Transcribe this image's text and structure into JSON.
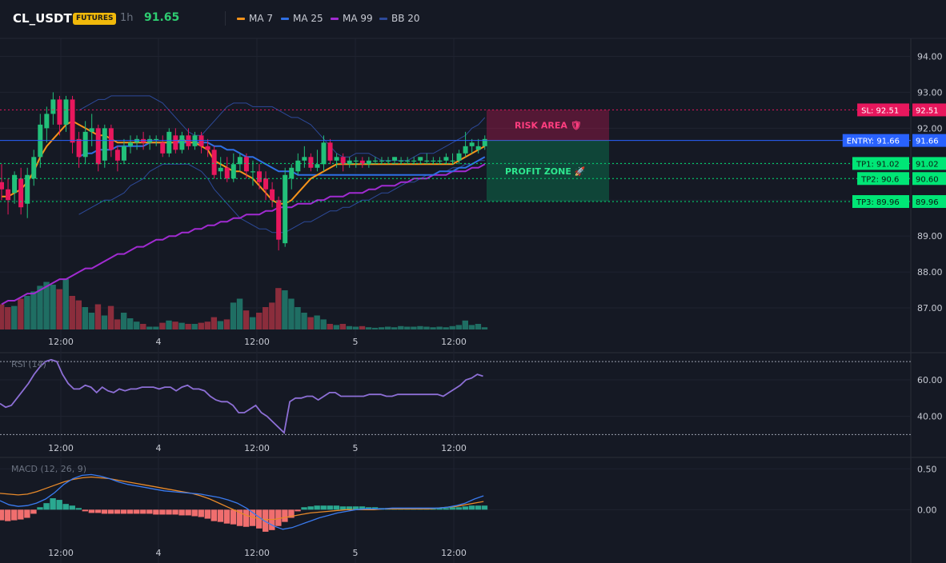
{
  "header": {
    "symbol": "CL_USDT",
    "badge": "FUTURES",
    "timeframe": "1h",
    "price": "91.65",
    "legend": [
      {
        "label": "MA 7",
        "color": "#f7931a"
      },
      {
        "label": "MA 25",
        "color": "#2f6fe4"
      },
      {
        "label": "MA 99",
        "color": "#a12bd1"
      },
      {
        "label": "BB 20",
        "color": "#2d4a9a"
      }
    ]
  },
  "colors": {
    "up": "#22c07a",
    "down": "#e8175d",
    "vol_up": "#1f6e63",
    "vol_down": "#8b2d3c"
  },
  "chart_data": [
    {
      "type": "candlestick",
      "ylim": [
        86.4,
        94.5
      ],
      "y_ticks": [
        "94.00",
        "93.00",
        "92.00",
        "91.00",
        "90.00",
        "89.00",
        "88.00",
        "87.00"
      ],
      "x_ticks": [
        "12:00",
        "4",
        "12:00",
        "5",
        "12:00"
      ],
      "candles": [
        [
          90.5,
          90.3,
          91.0,
          90.0
        ],
        [
          90.3,
          90.0,
          90.6,
          89.6
        ],
        [
          90.2,
          90.7,
          90.8,
          89.9
        ],
        [
          90.6,
          89.8,
          90.9,
          89.6
        ],
        [
          89.9,
          90.7,
          90.9,
          89.5
        ],
        [
          90.6,
          91.2,
          91.4,
          90.4
        ],
        [
          91.2,
          92.1,
          92.4,
          90.9
        ],
        [
          92.0,
          92.4,
          92.6,
          91.6
        ],
        [
          92.4,
          92.8,
          93.0,
          92.1
        ],
        [
          92.8,
          92.1,
          92.9,
          91.8
        ],
        [
          92.1,
          92.8,
          92.9,
          91.9
        ],
        [
          92.8,
          91.6,
          92.9,
          91.3
        ],
        [
          91.7,
          91.2,
          91.9,
          90.9
        ],
        [
          91.2,
          91.9,
          92.2,
          91.0
        ],
        [
          91.9,
          92.0,
          92.4,
          91.5
        ],
        [
          92.0,
          91.0,
          92.1,
          90.8
        ],
        [
          91.1,
          92.0,
          92.1,
          90.9
        ],
        [
          92.0,
          91.4,
          92.1,
          91.2
        ],
        [
          91.4,
          91.1,
          91.5,
          90.8
        ],
        [
          91.1,
          91.5,
          91.7,
          91.0
        ],
        [
          91.5,
          91.6,
          91.8,
          91.3
        ],
        [
          91.6,
          91.7,
          91.8,
          91.4
        ],
        [
          91.7,
          91.6,
          91.9,
          91.4
        ],
        [
          91.6,
          91.7,
          91.8,
          91.4
        ],
        [
          91.7,
          91.7,
          91.8,
          91.5
        ],
        [
          91.6,
          91.3,
          91.8,
          91.2
        ],
        [
          91.3,
          91.9,
          92.0,
          91.2
        ],
        [
          91.8,
          91.4,
          92.0,
          91.3
        ],
        [
          91.4,
          91.8,
          91.9,
          91.3
        ],
        [
          91.8,
          91.5,
          92.0,
          91.4
        ],
        [
          91.5,
          91.8,
          91.9,
          91.4
        ],
        [
          91.8,
          91.5,
          91.9,
          91.3
        ],
        [
          91.5,
          91.4,
          91.7,
          91.2
        ],
        [
          91.4,
          90.7,
          91.5,
          90.6
        ],
        [
          90.8,
          90.9,
          91.2,
          90.6
        ],
        [
          90.9,
          90.6,
          91.2,
          90.5
        ],
        [
          90.6,
          91.0,
          91.3,
          90.5
        ],
        [
          91.0,
          91.2,
          91.3,
          90.8
        ],
        [
          91.2,
          90.8,
          91.3,
          90.6
        ],
        [
          90.8,
          90.8,
          91.1,
          90.4
        ],
        [
          90.8,
          90.5,
          91.0,
          90.3
        ],
        [
          90.6,
          90.3,
          90.8,
          90.0
        ],
        [
          90.3,
          90.0,
          90.5,
          89.8
        ],
        [
          90.0,
          88.9,
          90.1,
          88.6
        ],
        [
          88.8,
          90.7,
          90.9,
          88.7
        ],
        [
          90.6,
          90.9,
          91.0,
          90.3
        ],
        [
          90.8,
          91.1,
          91.3,
          90.7
        ],
        [
          91.1,
          91.2,
          91.5,
          90.9
        ],
        [
          91.2,
          90.9,
          91.3,
          90.8
        ],
        [
          90.9,
          91.0,
          91.4,
          90.8
        ],
        [
          91.0,
          91.6,
          91.8,
          90.8
        ],
        [
          91.6,
          91.1,
          91.7,
          91.0
        ],
        [
          91.1,
          91.2,
          91.3,
          90.9
        ],
        [
          91.2,
          91.0,
          91.3,
          90.8
        ],
        [
          91.0,
          91.1,
          91.2,
          90.9
        ],
        [
          91.1,
          91.1,
          91.2,
          90.9
        ],
        [
          91.1,
          91.0,
          91.2,
          90.9
        ],
        [
          91.0,
          91.1,
          91.2,
          90.9
        ],
        [
          91.1,
          91.1,
          91.2,
          91.0
        ],
        [
          91.1,
          91.1,
          91.2,
          91.0
        ],
        [
          91.1,
          91.1,
          91.2,
          91.0
        ],
        [
          91.1,
          91.2,
          91.2,
          91.0
        ],
        [
          91.1,
          91.1,
          91.2,
          91.0
        ],
        [
          91.1,
          91.1,
          91.2,
          91.0
        ],
        [
          91.1,
          91.1,
          91.2,
          91.0
        ],
        [
          91.1,
          91.2,
          91.2,
          91.0
        ],
        [
          91.1,
          91.1,
          91.3,
          91.0
        ],
        [
          91.1,
          91.1,
          91.2,
          91.0
        ],
        [
          91.1,
          91.1,
          91.2,
          91.0
        ],
        [
          91.1,
          91.2,
          91.3,
          91.0
        ],
        [
          91.1,
          91.1,
          91.3,
          91.0
        ],
        [
          91.1,
          91.3,
          91.4,
          91.0
        ],
        [
          91.3,
          91.5,
          91.9,
          91.2
        ],
        [
          91.5,
          91.6,
          91.7,
          91.3
        ],
        [
          91.4,
          91.5,
          91.7,
          91.3
        ],
        [
          91.5,
          91.7,
          91.8,
          91.4
        ]
      ],
      "ma7": [
        90.1,
        90.1,
        90.2,
        90.3,
        90.5,
        90.8,
        91.2,
        91.5,
        91.7,
        91.9,
        92.1,
        92.2,
        92.1,
        92.0,
        91.9,
        91.8,
        91.8,
        91.7,
        91.6,
        91.6,
        91.6,
        91.6,
        91.6,
        91.6,
        91.6,
        91.6,
        91.6,
        91.6,
        91.7,
        91.6,
        91.6,
        91.5,
        91.4,
        91.1,
        91.0,
        90.9,
        90.8,
        90.8,
        90.7,
        90.6,
        90.4,
        90.2,
        90.0,
        89.9,
        89.9,
        90.0,
        90.2,
        90.4,
        90.6,
        90.7,
        90.8,
        90.9,
        91.0,
        91.0,
        91.0,
        91.0,
        91.0,
        91.0,
        91.0,
        91.0,
        91.0,
        91.0,
        91.0,
        91.0,
        91.0,
        91.0,
        91.0,
        91.0,
        91.0,
        91.0,
        91.0,
        91.1,
        91.2,
        91.3,
        91.4,
        91.5
      ],
      "ma25": [
        null,
        null,
        null,
        null,
        null,
        null,
        null,
        null,
        null,
        null,
        null,
        null,
        91.2,
        91.3,
        91.3,
        91.4,
        91.4,
        91.4,
        91.5,
        91.5,
        91.5,
        91.5,
        91.5,
        91.6,
        91.6,
        91.6,
        91.6,
        91.6,
        91.6,
        91.6,
        91.6,
        91.6,
        91.6,
        91.5,
        91.5,
        91.4,
        91.4,
        91.3,
        91.2,
        91.2,
        91.1,
        91.0,
        90.9,
        90.8,
        90.8,
        90.8,
        90.7,
        90.7,
        90.7,
        90.7,
        90.7,
        90.7,
        90.7,
        90.7,
        90.7,
        90.7,
        90.7,
        90.7,
        90.7,
        90.7,
        90.7,
        90.7,
        90.7,
        90.7,
        90.7,
        90.7,
        90.7,
        90.7,
        90.8,
        90.8,
        90.8,
        90.9,
        90.9,
        91.0,
        91.1,
        91.2
      ],
      "ma99": [
        87.1,
        87.2,
        87.2,
        87.3,
        87.4,
        87.4,
        87.5,
        87.6,
        87.7,
        87.8,
        87.8,
        87.9,
        88.0,
        88.1,
        88.1,
        88.2,
        88.3,
        88.4,
        88.5,
        88.5,
        88.6,
        88.7,
        88.7,
        88.8,
        88.9,
        88.9,
        89.0,
        89.0,
        89.1,
        89.1,
        89.2,
        89.2,
        89.3,
        89.3,
        89.4,
        89.4,
        89.5,
        89.5,
        89.6,
        89.6,
        89.6,
        89.7,
        89.7,
        89.8,
        89.8,
        89.8,
        89.9,
        89.9,
        89.9,
        90.0,
        90.0,
        90.1,
        90.1,
        90.1,
        90.2,
        90.2,
        90.2,
        90.3,
        90.3,
        90.4,
        90.4,
        90.4,
        90.5,
        90.5,
        90.6,
        90.6,
        90.6,
        90.7,
        90.7,
        90.7,
        90.8,
        90.8,
        90.8,
        90.9,
        90.9,
        91.0
      ],
      "bb_upper": [
        null,
        null,
        null,
        null,
        null,
        null,
        null,
        null,
        null,
        null,
        null,
        null,
        92.5,
        92.6,
        92.7,
        92.8,
        92.8,
        92.9,
        92.9,
        92.9,
        92.9,
        92.9,
        92.9,
        92.9,
        92.8,
        92.7,
        92.5,
        92.3,
        92.1,
        91.9,
        91.8,
        91.8,
        92.0,
        92.2,
        92.4,
        92.6,
        92.7,
        92.7,
        92.7,
        92.6,
        92.6,
        92.6,
        92.6,
        92.5,
        92.4,
        92.3,
        92.3,
        92.2,
        92.1,
        91.9,
        91.7,
        91.5,
        91.3,
        91.2,
        91.2,
        91.3,
        91.3,
        91.3,
        91.2,
        91.1,
        91.1,
        91.1,
        91.1,
        91.1,
        91.2,
        91.3,
        91.3,
        91.3,
        91.4,
        91.5,
        91.6,
        91.7,
        91.8,
        92.0,
        92.1,
        92.3
      ],
      "bb_lower": [
        null,
        null,
        null,
        null,
        null,
        null,
        null,
        null,
        null,
        null,
        null,
        null,
        89.6,
        89.7,
        89.8,
        89.9,
        90.0,
        90.0,
        90.1,
        90.2,
        90.4,
        90.5,
        90.6,
        90.8,
        90.9,
        91.0,
        91.0,
        91.0,
        91.0,
        91.0,
        90.9,
        90.8,
        90.6,
        90.3,
        90.1,
        89.9,
        89.7,
        89.5,
        89.4,
        89.3,
        89.2,
        89.2,
        89.1,
        89.1,
        89.1,
        89.2,
        89.3,
        89.4,
        89.4,
        89.5,
        89.6,
        89.7,
        89.7,
        89.8,
        89.8,
        89.9,
        90.0,
        90.0,
        90.1,
        90.2,
        90.2,
        90.3,
        90.4,
        90.5,
        90.5,
        90.6,
        90.7,
        90.7,
        90.8,
        90.8,
        90.9,
        90.9,
        91.0,
        91.0,
        91.1,
        91.1
      ],
      "volume": [
        0.45,
        0.4,
        0.42,
        0.55,
        0.6,
        0.68,
        0.78,
        0.85,
        0.8,
        0.72,
        0.9,
        0.6,
        0.52,
        0.4,
        0.3,
        0.45,
        0.25,
        0.42,
        0.18,
        0.3,
        0.2,
        0.14,
        0.1,
        0.05,
        0.05,
        0.12,
        0.16,
        0.14,
        0.12,
        0.1,
        0.1,
        0.12,
        0.14,
        0.22,
        0.15,
        0.18,
        0.48,
        0.55,
        0.34,
        0.22,
        0.3,
        0.4,
        0.48,
        0.74,
        0.7,
        0.55,
        0.4,
        0.3,
        0.22,
        0.25,
        0.18,
        0.1,
        0.08,
        0.1,
        0.06,
        0.05,
        0.06,
        0.04,
        0.03,
        0.04,
        0.05,
        0.04,
        0.06,
        0.05,
        0.05,
        0.06,
        0.05,
        0.04,
        0.05,
        0.04,
        0.06,
        0.08,
        0.16,
        0.08,
        0.1,
        0.04
      ],
      "levels": [
        {
          "name": "sl-line",
          "label": "SL: 92.51",
          "value": 92.51,
          "price": "92.51",
          "color": "#e8175d",
          "style": "dotted"
        },
        {
          "name": "entry-line",
          "label": "ENTRY: 91.66",
          "value": 91.66,
          "price": "91.66",
          "color": "#2962ff",
          "style": "solid"
        },
        {
          "name": "tp1-line",
          "label": "TP1: 91.02",
          "value": 91.02,
          "price": "91.02",
          "color": "#00e676",
          "style": "dotted"
        },
        {
          "name": "tp2-line",
          "label": "TP2: 90.6",
          "value": 90.6,
          "price": "90.60",
          "color": "#00e676",
          "style": "dotted"
        },
        {
          "name": "tp3-line",
          "label": "TP3: 89.96",
          "value": 89.96,
          "price": "89.96",
          "color": "#00e676",
          "style": "dotted"
        }
      ],
      "zones": {
        "risk": "RISK AREA 🛡",
        "profit": "PROFIT ZONE 🚀"
      }
    },
    {
      "type": "line",
      "title": "RSI (14)",
      "ylim": [
        28,
        74
      ],
      "y_ticks": [
        "60.00",
        "40.00"
      ],
      "x_ticks": [
        "12:00",
        "4",
        "12:00",
        "5",
        "12:00"
      ],
      "bands": [
        70,
        30
      ],
      "values": [
        47,
        45,
        46,
        50,
        54,
        58,
        63,
        67,
        70,
        71,
        70,
        63,
        58,
        55,
        55,
        57,
        56,
        53,
        56,
        54,
        53,
        55,
        54,
        55,
        55,
        56,
        56,
        56,
        55,
        56,
        56,
        54,
        56,
        57,
        55,
        55,
        54,
        51,
        49,
        48,
        48,
        46,
        42,
        42,
        44,
        46,
        42,
        40,
        37,
        34,
        31,
        48,
        50,
        50,
        51,
        51,
        49,
        51,
        53,
        53,
        51,
        51,
        51,
        51,
        51,
        52,
        52,
        52,
        51,
        51,
        52,
        52,
        52,
        52,
        52,
        52,
        52,
        52,
        51,
        53,
        55,
        57,
        60,
        61,
        63,
        62
      ],
      "x_start": 0,
      "x_step": 7.1
    },
    {
      "type": "bar",
      "title": "MACD (12, 26, 9)",
      "ylim": [
        -0.32,
        0.62
      ],
      "y_ticks": [
        "0.50",
        "0.00"
      ],
      "x_ticks": [
        "12:00",
        "4",
        "12:00",
        "5",
        "12:00"
      ],
      "histogram": [
        -0.13,
        -0.14,
        -0.13,
        -0.12,
        -0.1,
        -0.05,
        0.03,
        0.08,
        0.14,
        0.12,
        0.07,
        0.05,
        0.02,
        -0.02,
        -0.04,
        -0.04,
        -0.05,
        -0.05,
        -0.05,
        -0.05,
        -0.05,
        -0.05,
        -0.05,
        -0.05,
        -0.06,
        -0.06,
        -0.06,
        -0.06,
        -0.07,
        -0.07,
        -0.08,
        -0.09,
        -0.11,
        -0.14,
        -0.15,
        -0.17,
        -0.18,
        -0.2,
        -0.21,
        -0.2,
        -0.23,
        -0.27,
        -0.25,
        -0.2,
        -0.15,
        -0.1,
        -0.02,
        0.03,
        0.04,
        0.05,
        0.05,
        0.05,
        0.05,
        0.04,
        0.04,
        0.04,
        0.04,
        0.03,
        0.03,
        0.02,
        0.02,
        0.02,
        0.02,
        0.02,
        0.02,
        0.02,
        0.02,
        0.02,
        0.02,
        0.02,
        0.03,
        0.03,
        0.04,
        0.05,
        0.05,
        0.05
      ],
      "macd": [
        0.11,
        0.06,
        0.04,
        0.05,
        0.08,
        0.13,
        0.21,
        0.31,
        0.38,
        0.42,
        0.43,
        0.41,
        0.38,
        0.34,
        0.31,
        0.29,
        0.27,
        0.25,
        0.23,
        0.22,
        0.21,
        0.2,
        0.19,
        0.17,
        0.15,
        0.12,
        0.08,
        0.02,
        -0.06,
        -0.14,
        -0.2,
        -0.24,
        -0.22,
        -0.18,
        -0.14,
        -0.1,
        -0.07,
        -0.04,
        -0.02,
        0.0,
        0.01,
        0.01,
        0.01,
        0.02,
        0.02,
        0.02,
        0.02,
        0.02,
        0.02,
        0.03,
        0.05,
        0.08,
        0.13,
        0.17
      ],
      "signal": [
        0.2,
        0.19,
        0.18,
        0.19,
        0.22,
        0.26,
        0.3,
        0.34,
        0.37,
        0.39,
        0.4,
        0.39,
        0.38,
        0.36,
        0.34,
        0.32,
        0.3,
        0.28,
        0.26,
        0.24,
        0.22,
        0.2,
        0.17,
        0.13,
        0.08,
        0.03,
        -0.02,
        -0.07,
        -0.1,
        -0.12,
        -0.12,
        -0.1,
        -0.08,
        -0.06,
        -0.04,
        -0.03,
        -0.02,
        -0.01,
        0.0,
        0.0,
        0.0,
        0.0,
        0.01,
        0.01,
        0.01,
        0.01,
        0.01,
        0.01,
        0.02,
        0.03,
        0.04,
        0.06,
        0.08,
        0.1
      ]
    }
  ]
}
